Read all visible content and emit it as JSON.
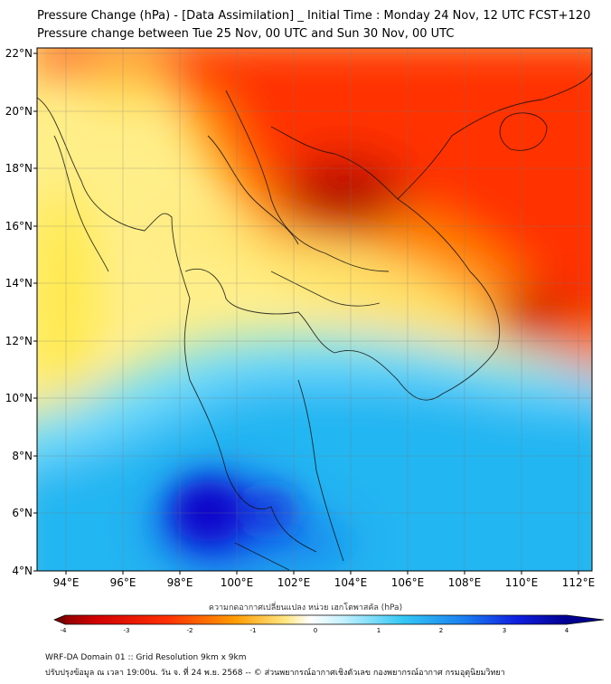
{
  "title_line1": "Pressure Change (hPa) - [Data Assimilation] _ Initial Time : Monday 24 Nov, 12 UTC FCST+120",
  "title_line2": "Pressure change between Tue 25 Nov, 00 UTC and Sun 30 Nov, 00 UTC",
  "lat_labels": [
    "22°N",
    "20°N",
    "18°N",
    "16°N",
    "14°N",
    "12°N",
    "10°N",
    "8°N",
    "6°N",
    "4°N"
  ],
  "lon_labels": [
    "94°E",
    "96°E",
    "98°E",
    "100°E",
    "102°E",
    "104°E",
    "106°E",
    "108°E",
    "110°E",
    "112°E"
  ],
  "colorbar": {
    "label": "ความกดอากาศเปลี่ยนแปลง หน่วย เฮกโตพาสคัล (hPa)",
    "ticks": [
      "-4",
      "-3",
      "-2",
      "-1",
      "0",
      "1",
      "2",
      "3",
      "4"
    ],
    "min": -4,
    "max": 4
  },
  "footer_line1": "WRF-DA Domain 01 :: Grid Resolution 9km x 9km",
  "footer_line2": "ปรับปรุงข้อมูล ณ เวลา 19:00น. วัน จ. ที่ 24 พ.ย. 2568 -- © ส่วนพยากรณ์อากาศเชิงตัวเลข กองพยากรณ์อากาศ กรมอุตุนิยมวิทยา",
  "colors": {
    "strong_negative": "#7a0000",
    "negative": "#ff1a00",
    "weak_negative": "#ffd21a",
    "neutral": "#ffffff",
    "weak_positive": "#9ee8ff",
    "positive": "#18b8f0",
    "strong_positive": "#0a00c8"
  }
}
